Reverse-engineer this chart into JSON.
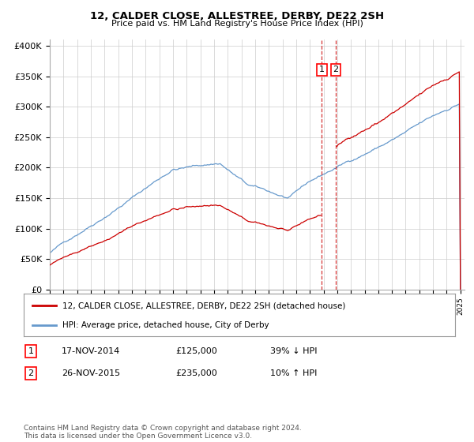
{
  "title": "12, CALDER CLOSE, ALLESTREE, DERBY, DE22 2SH",
  "subtitle": "Price paid vs. HM Land Registry's House Price Index (HPI)",
  "x_start_year": 1995,
  "x_end_year": 2025,
  "ylim": [
    0,
    410000
  ],
  "yticks": [
    0,
    50000,
    100000,
    150000,
    200000,
    250000,
    300000,
    350000,
    400000
  ],
  "ytick_labels": [
    "£0",
    "£50K",
    "£100K",
    "£150K",
    "£200K",
    "£250K",
    "£300K",
    "£350K",
    "£400K"
  ],
  "sale1_date": 2014.88,
  "sale1_price": 125000,
  "sale2_date": 2015.9,
  "sale2_price": 235000,
  "red_line_color": "#cc0000",
  "blue_line_color": "#6699cc",
  "vline_color": "#cc0000",
  "grid_color": "#cccccc",
  "background_color": "#ffffff",
  "legend1_label": "12, CALDER CLOSE, ALLESTREE, DERBY, DE22 2SH (detached house)",
  "legend2_label": "HPI: Average price, detached house, City of Derby",
  "table_row1": [
    "1",
    "17-NOV-2014",
    "£125,000",
    "39% ↓ HPI"
  ],
  "table_row2": [
    "2",
    "26-NOV-2015",
    "£235,000",
    "10% ↑ HPI"
  ],
  "footnote": "Contains HM Land Registry data © Crown copyright and database right 2024.\nThis data is licensed under the Open Government Licence v3.0."
}
